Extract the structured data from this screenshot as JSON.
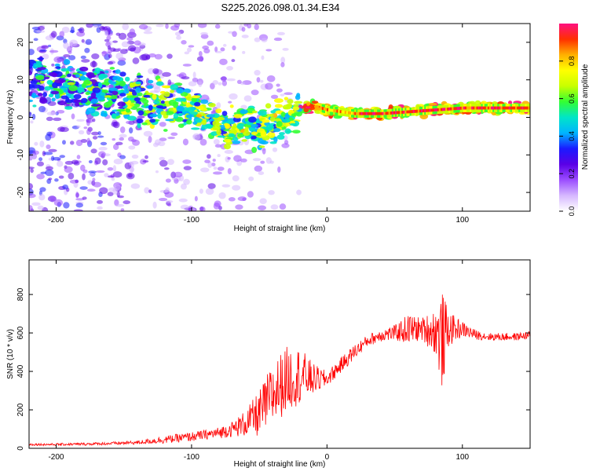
{
  "title": "S225.2026.098.01.34.E34",
  "chart_data": [
    {
      "type": "heatmap",
      "xlabel": "Height of straight line (km)",
      "ylabel": "Frequency (Hz)",
      "xlim": [
        -220,
        150
      ],
      "ylim": [
        -25,
        25
      ],
      "xticks": [
        -200,
        -100,
        0,
        100
      ],
      "yticks": [
        -20,
        -10,
        0,
        10,
        20
      ],
      "xtick_labels": [
        "-200",
        "-100",
        "0",
        "100"
      ],
      "ytick_labels": [
        "-20",
        "-10",
        "0",
        "10",
        "20"
      ],
      "colorbar": {
        "label": "Normalized spectral amplitude",
        "range": [
          0,
          1
        ],
        "ticks": [
          0.0,
          0.2,
          0.4,
          0.6,
          0.8
        ],
        "tick_labels": [
          "0.0",
          "0.2",
          "0.4",
          "0.6",
          "0.8"
        ],
        "colors": [
          "#ffffff",
          "#d6b8ff",
          "#9b4dff",
          "#5a00e6",
          "#1a1aff",
          "#00b4ff",
          "#00e5c8",
          "#33ff33",
          "#c8ff00",
          "#ffff00",
          "#ffb000",
          "#ff3000",
          "#ff1080"
        ]
      },
      "ridge": {
        "x": [
          -220,
          -200,
          -180,
          -160,
          -140,
          -120,
          -100,
          -90,
          -80,
          -70,
          -60,
          -50,
          -40,
          -30,
          -20,
          -10,
          0,
          20,
          40,
          60,
          80,
          100,
          120,
          150
        ],
        "y": [
          10,
          9,
          8,
          6.5,
          5,
          4,
          2,
          0,
          -2,
          -3,
          -2,
          -3,
          -2,
          0,
          2,
          3,
          2,
          1,
          1,
          1.5,
          2,
          2.5,
          2.5,
          2.5
        ]
      }
    },
    {
      "type": "line",
      "xlabel": "Height of straight line (km)",
      "ylabel": "SNR (10 * v/v)",
      "xlim": [
        -220,
        150
      ],
      "ylim": [
        0,
        980
      ],
      "xticks": [
        -200,
        -100,
        0,
        100
      ],
      "yticks": [
        0,
        200,
        400,
        600,
        800
      ],
      "xtick_labels": [
        "-200",
        "-100",
        "0",
        "100"
      ],
      "ytick_labels": [
        "0",
        "200",
        "400",
        "600",
        "800"
      ],
      "series": [
        {
          "name": "SNR",
          "color": "#ff0000",
          "x": [
            -220,
            -200,
            -180,
            -160,
            -140,
            -120,
            -100,
            -90,
            -80,
            -70,
            -60,
            -50,
            -40,
            -30,
            -20,
            -10,
            0,
            10,
            20,
            30,
            40,
            50,
            60,
            70,
            80,
            85,
            90,
            100,
            110,
            120,
            130,
            140,
            150
          ],
          "y": [
            20,
            20,
            22,
            25,
            30,
            45,
            60,
            70,
            80,
            100,
            130,
            180,
            280,
            360,
            380,
            360,
            360,
            430,
            500,
            560,
            590,
            600,
            620,
            620,
            610,
            560,
            620,
            620,
            590,
            580,
            580,
            580,
            590
          ],
          "noise": [
            6,
            6,
            7,
            8,
            10,
            20,
            25,
            25,
            30,
            40,
            70,
            120,
            170,
            170,
            150,
            80,
            40,
            40,
            40,
            30,
            35,
            40,
            80,
            60,
            120,
            260,
            90,
            40,
            25,
            20,
            20,
            20,
            20
          ]
        }
      ]
    }
  ]
}
